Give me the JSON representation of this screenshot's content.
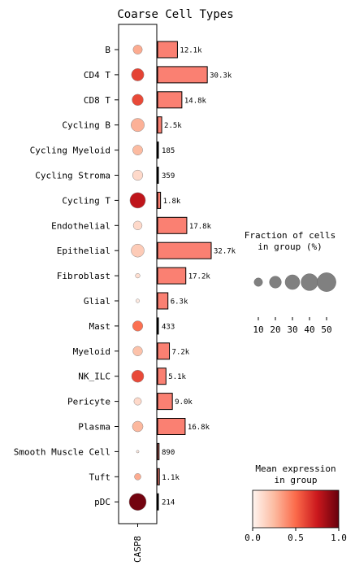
{
  "chart_data": {
    "type": "dotplot",
    "title": "Coarse Cell Types",
    "gene": "CASP8",
    "categories": [
      "B",
      "CD4 T",
      "CD8 T",
      "Cycling B",
      "Cycling Myeloid",
      "Cycling Stroma",
      "Cycling T",
      "Endothelial",
      "Epithelial",
      "Fibroblast",
      "Glial",
      "Mast",
      "Myeloid",
      "NK_ILC",
      "Pericyte",
      "Plasma",
      "Smooth Muscle Cell",
      "Tuft",
      "pDC"
    ],
    "fraction_pct": [
      12,
      22,
      18,
      25,
      14,
      15,
      34,
      11,
      24,
      3,
      2,
      15,
      13,
      21,
      8,
      16,
      1,
      6,
      41
    ],
    "mean_expression": [
      0.3,
      0.62,
      0.6,
      0.28,
      0.25,
      0.12,
      0.78,
      0.12,
      0.18,
      0.1,
      0.05,
      0.48,
      0.22,
      0.6,
      0.12,
      0.26,
      0.05,
      0.3,
      0.97
    ],
    "cell_counts": [
      12100,
      30300,
      14800,
      2500,
      185,
      359,
      1800,
      17800,
      32700,
      17200,
      6300,
      433,
      7200,
      5100,
      9000,
      16800,
      890,
      1100,
      214
    ],
    "count_labels": [
      "12.1k",
      "30.3k",
      "14.8k",
      "2.5k",
      "185",
      "359",
      "1.8k",
      "17.8k",
      "32.7k",
      "17.2k",
      "6.3k",
      "433",
      "7.2k",
      "5.1k",
      "9.0k",
      "16.8k",
      "890",
      "1.1k",
      "214"
    ],
    "size_legend": {
      "title_line1": "Fraction of cells",
      "title_line2": "in group (%)",
      "values": [
        10,
        20,
        30,
        40,
        50
      ],
      "labels": [
        "10",
        "20",
        "30",
        "40",
        "50"
      ]
    },
    "color_legend": {
      "title_line1": "Mean expression",
      "title_line2": "in group",
      "ticks": [
        "0.0",
        "0.5",
        "1.0"
      ],
      "range": [
        0,
        1
      ],
      "colormap": "Reds",
      "colors": [
        "#fff5f0",
        "#fcbba1",
        "#fb6a4a",
        "#cb181d",
        "#67000d"
      ]
    },
    "bar_color": "#fa8072"
  }
}
